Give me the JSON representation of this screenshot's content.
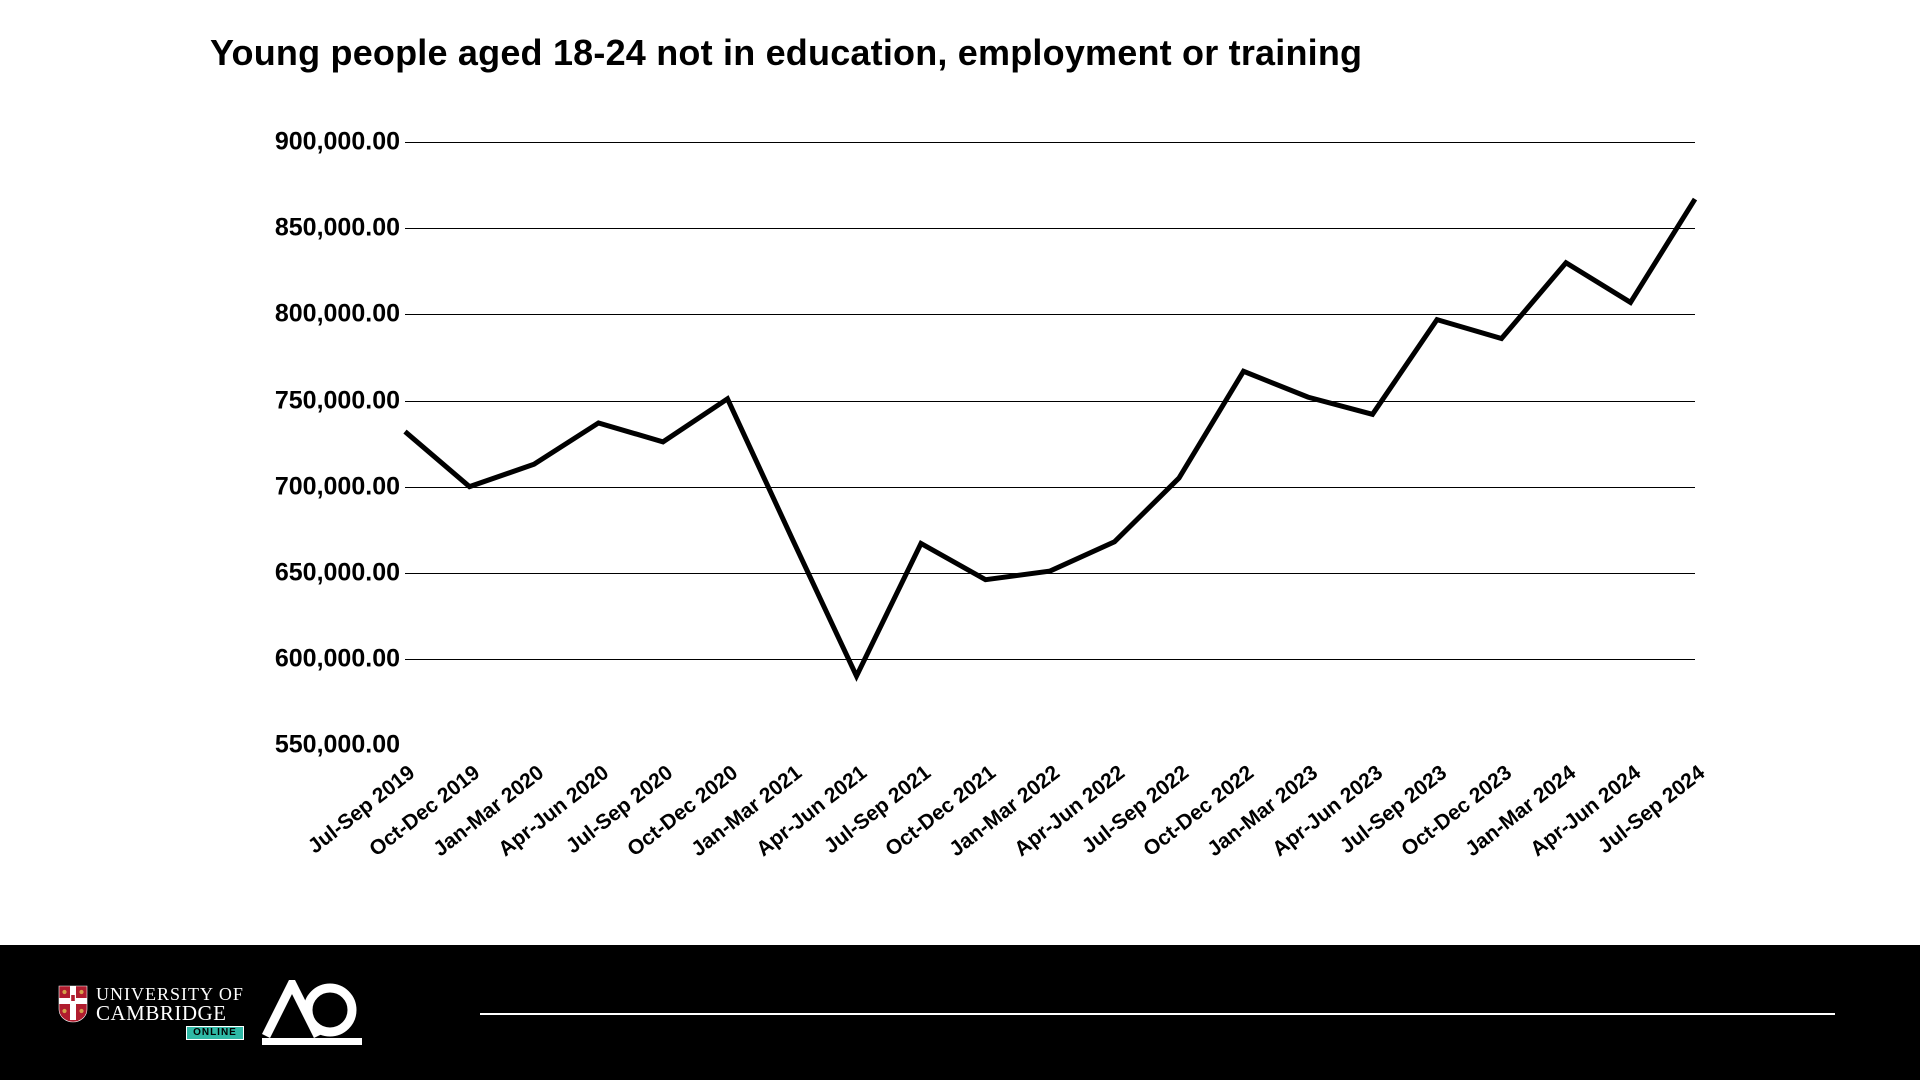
{
  "title": "Young people aged 18-24 not in education, employment or training",
  "chart": {
    "type": "line",
    "background_color": "#ffffff",
    "grid_color": "#000000",
    "line_color": "#000000",
    "line_width": 5,
    "title_fontsize": 36,
    "ylabel_fontsize": 25,
    "xlabel_fontsize": 21,
    "xlabel_rotation_deg": -38,
    "y_min": 550000,
    "y_max": 900000,
    "y_tick_step": 50000,
    "y_tick_labels": [
      "550,000.00",
      "600,000.00",
      "650,000.00",
      "700,000.00",
      "750,000.00",
      "800,000.00",
      "850,000.00",
      "900,000.00"
    ],
    "categories": [
      "Jul-Sep 2019",
      "Oct-Dec 2019",
      "Jan-Mar 2020",
      "Apr-Jun 2020",
      "Jul-Sep 2020",
      "Oct-Dec 2020",
      "Jan-Mar 2021",
      "Apr-Jun 2021",
      "Jul-Sep 2021",
      "Oct-Dec 2021",
      "Jan-Mar 2022",
      "Apr-Jun 2022",
      "Jul-Sep 2022",
      "Oct-Dec 2022",
      "Jan-Mar 2023",
      "Apr-Jun 2023",
      "Jul-Sep 2023",
      "Oct-Dec 2023",
      "Jan-Mar 2024",
      "Apr-Jun 2024",
      "Jul-Sep 2024"
    ],
    "values": [
      732000,
      700000,
      713000,
      737000,
      726000,
      751000,
      670000,
      590000,
      667000,
      646000,
      651000,
      668000,
      705000,
      767000,
      752000,
      742000,
      797000,
      786000,
      830000,
      807000,
      867000
    ]
  },
  "footer": {
    "bg_color": "#000000",
    "divider_color": "#ffffff",
    "cambridge_line1": "UNIVERSITY OF",
    "cambridge_line2": "CAMBRIDGE",
    "online_badge": "ONLINE",
    "online_badge_bg": "#2fb9a6",
    "shield_red": "#b01c2e",
    "shield_gold": "#d4a24a"
  }
}
